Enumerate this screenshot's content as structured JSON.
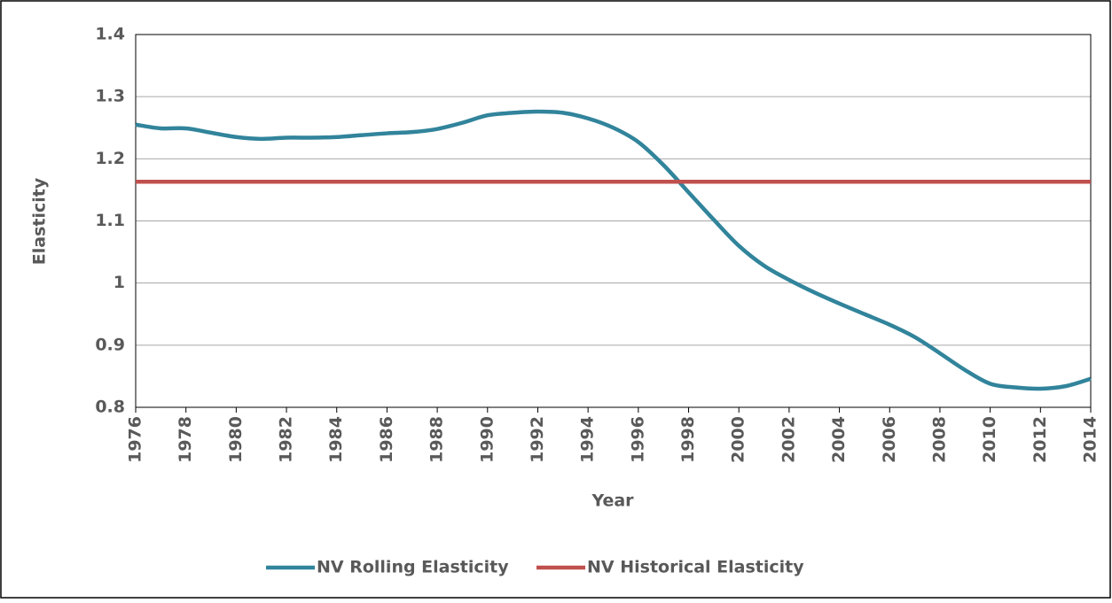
{
  "chart_data": {
    "type": "line",
    "x": [
      1976,
      1977,
      1978,
      1979,
      1980,
      1981,
      1982,
      1983,
      1984,
      1985,
      1986,
      1987,
      1988,
      1989,
      1990,
      1991,
      1992,
      1993,
      1994,
      1995,
      1996,
      1997,
      1998,
      1999,
      2000,
      2001,
      2002,
      2003,
      2004,
      2005,
      2006,
      2007,
      2008,
      2009,
      2010,
      2011,
      2012,
      2013,
      2014
    ],
    "series": [
      {
        "name": "NV Rolling Elasticity",
        "color": "#31849b",
        "values": [
          1.255,
          1.249,
          1.249,
          1.242,
          1.235,
          1.232,
          1.234,
          1.234,
          1.235,
          1.238,
          1.241,
          1.243,
          1.248,
          1.258,
          1.27,
          1.274,
          1.276,
          1.274,
          1.265,
          1.25,
          1.227,
          1.19,
          1.146,
          1.102,
          1.06,
          1.028,
          1.005,
          0.985,
          0.967,
          0.95,
          0.933,
          0.913,
          0.887,
          0.86,
          0.838,
          0.832,
          0.83,
          0.834,
          0.846
        ]
      },
      {
        "name": "NV Historical Elasticity",
        "color": "#c0504d",
        "values": [
          1.163,
          1.163,
          1.163,
          1.163,
          1.163,
          1.163,
          1.163,
          1.163,
          1.163,
          1.163,
          1.163,
          1.163,
          1.163,
          1.163,
          1.163,
          1.163,
          1.163,
          1.163,
          1.163,
          1.163,
          1.163,
          1.163,
          1.163,
          1.163,
          1.163,
          1.163,
          1.163,
          1.163,
          1.163,
          1.163,
          1.163,
          1.163,
          1.163,
          1.163,
          1.163,
          1.163,
          1.163,
          1.163,
          1.163
        ]
      }
    ],
    "x_label": "Year",
    "y_label": "Elasticity",
    "xlim": [
      1976,
      2014
    ],
    "xticks": [
      1976,
      1978,
      1980,
      1982,
      1984,
      1986,
      1988,
      1990,
      1992,
      1994,
      1996,
      1998,
      2000,
      2002,
      2004,
      2006,
      2008,
      2010,
      2012,
      2014
    ],
    "ylim": [
      0.8,
      1.4
    ],
    "yticks": [
      0.8,
      0.9,
      1,
      1.1,
      1.2,
      1.3,
      1.4
    ],
    "grid": true,
    "legend": "bottom"
  }
}
